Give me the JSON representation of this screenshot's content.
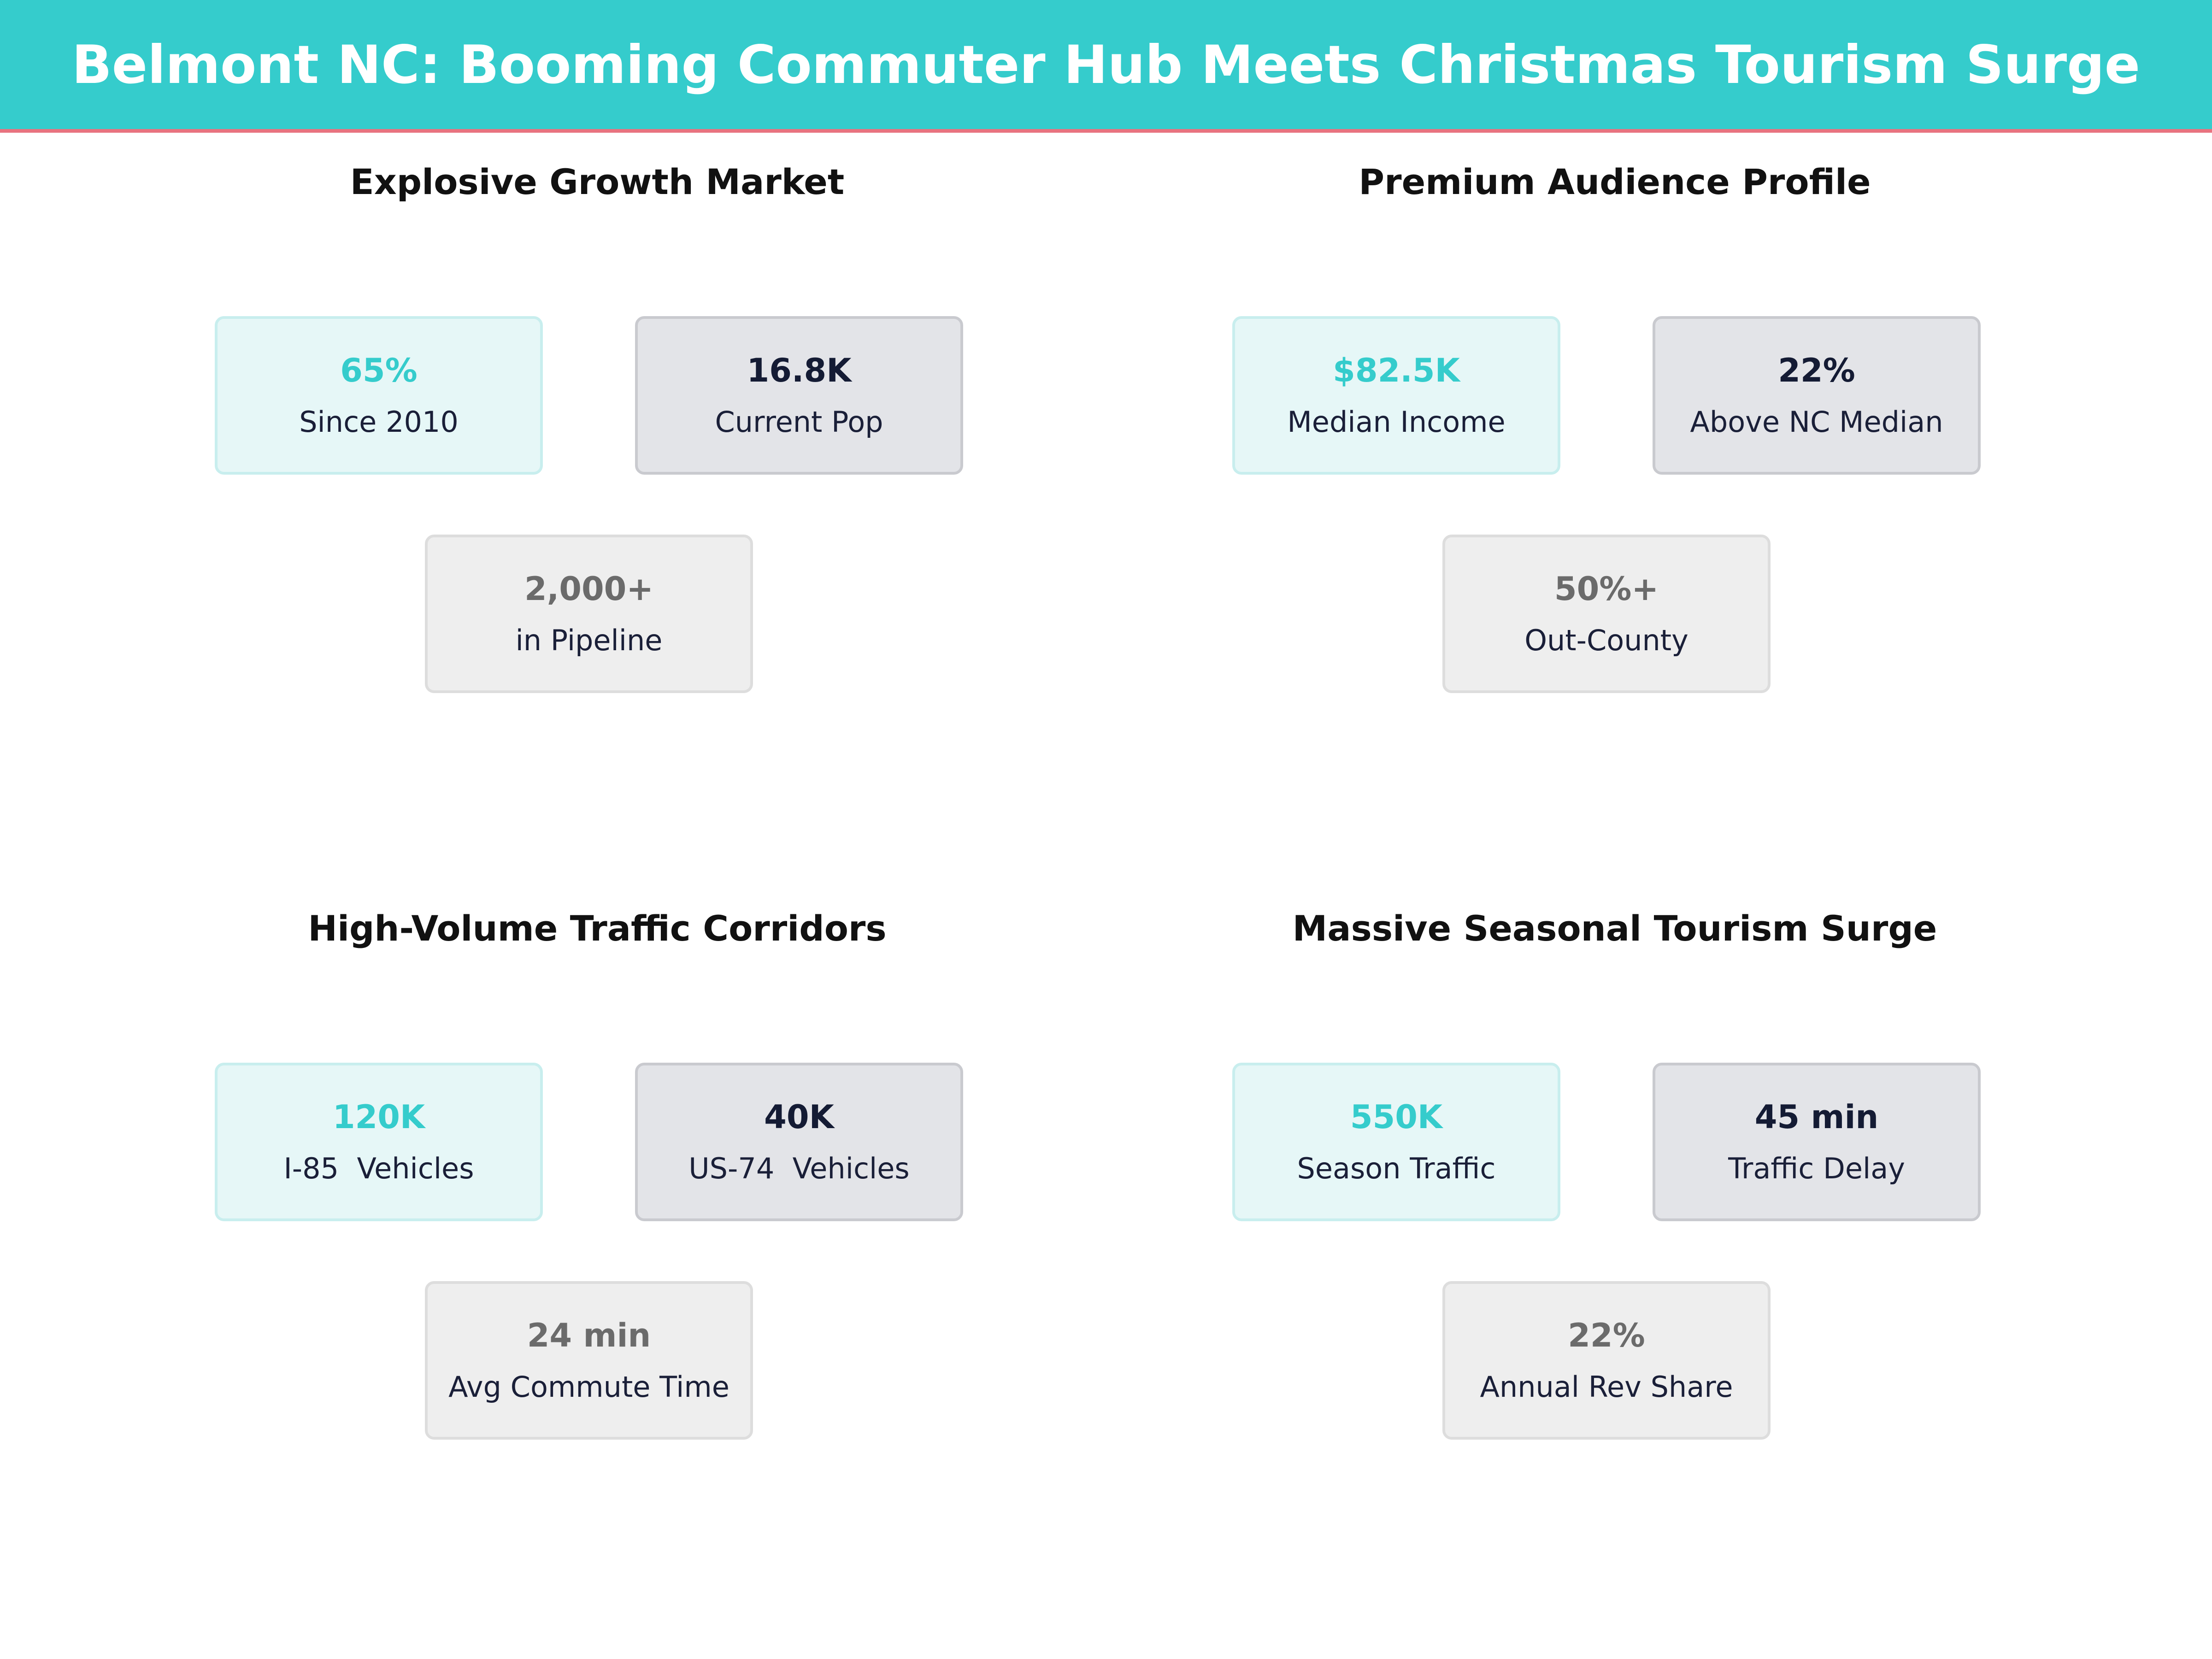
{
  "header": {
    "title": "Belmont NC: Booming Commuter Hub Meets Christmas Tourism Surge",
    "background_color": "#35cccc",
    "accent_line_color": "#e8737f"
  },
  "panels": [
    {
      "title": "Explosive Growth Market",
      "cards": [
        {
          "value": "65%",
          "label": "Since 2010",
          "style": "teal"
        },
        {
          "value": "16.8K",
          "label": "Current Pop",
          "style": "navy"
        },
        {
          "value": "2,000+",
          "label": "in Pipeline",
          "style": "grey"
        }
      ]
    },
    {
      "title": "Premium Audience Profile",
      "cards": [
        {
          "value": "$82.5K",
          "label": "Median Income",
          "style": "teal"
        },
        {
          "value": "22%",
          "label": "Above NC Median",
          "style": "navy"
        },
        {
          "value": "50%+",
          "label": "Out-County",
          "style": "grey"
        }
      ]
    },
    {
      "title": "High-Volume Traffic Corridors",
      "cards": [
        {
          "value": "120K",
          "label": "I-85  Vehicles",
          "style": "teal"
        },
        {
          "value": "40K",
          "label": "US-74  Vehicles",
          "style": "navy"
        },
        {
          "value": "24 min",
          "label": "Avg Commute Time",
          "style": "grey"
        }
      ]
    },
    {
      "title": "Massive Seasonal Tourism Surge",
      "cards": [
        {
          "value": "550K",
          "label": "Season Traffic",
          "style": "teal"
        },
        {
          "value": "45 min",
          "label": "Traffic Delay",
          "style": "navy"
        },
        {
          "value": "22%",
          "label": "Annual Rev Share",
          "style": "grey"
        }
      ]
    }
  ]
}
